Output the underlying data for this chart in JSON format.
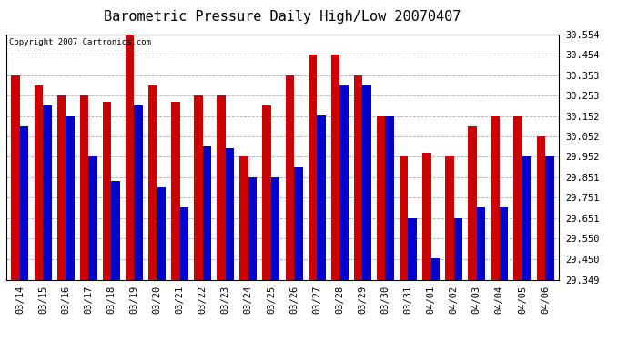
{
  "title": "Barometric Pressure Daily High/Low 20070407",
  "copyright": "Copyright 2007 Cartronics.com",
  "dates": [
    "03/14",
    "03/15",
    "03/16",
    "03/17",
    "03/18",
    "03/19",
    "03/20",
    "03/21",
    "03/22",
    "03/23",
    "03/24",
    "03/25",
    "03/26",
    "03/27",
    "03/28",
    "03/29",
    "03/30",
    "03/31",
    "04/01",
    "04/02",
    "04/03",
    "04/04",
    "04/05",
    "04/06"
  ],
  "highs": [
    30.353,
    30.303,
    30.253,
    30.253,
    30.223,
    30.554,
    30.303,
    30.223,
    30.253,
    30.253,
    29.952,
    30.203,
    30.353,
    30.453,
    30.453,
    30.353,
    30.152,
    29.952,
    29.972,
    29.952,
    30.102,
    30.152,
    30.152,
    30.052
  ],
  "lows": [
    30.102,
    30.203,
    30.152,
    29.952,
    29.832,
    30.203,
    29.802,
    29.702,
    30.002,
    29.993,
    29.852,
    29.852,
    29.902,
    30.153,
    30.303,
    30.303,
    30.152,
    29.652,
    29.452,
    29.652,
    29.702,
    29.702,
    29.952,
    29.952
  ],
  "ymin": 29.349,
  "ymax": 30.554,
  "yticks": [
    29.349,
    29.45,
    29.55,
    29.651,
    29.751,
    29.851,
    29.952,
    30.052,
    30.152,
    30.253,
    30.353,
    30.454,
    30.554
  ],
  "bar_width": 0.38,
  "high_color": "#cc0000",
  "low_color": "#0000cc",
  "bg_color": "#ffffff",
  "grid_color": "#aaaaaa",
  "title_fontsize": 11,
  "tick_fontsize": 7.5,
  "copyright_fontsize": 6.5
}
